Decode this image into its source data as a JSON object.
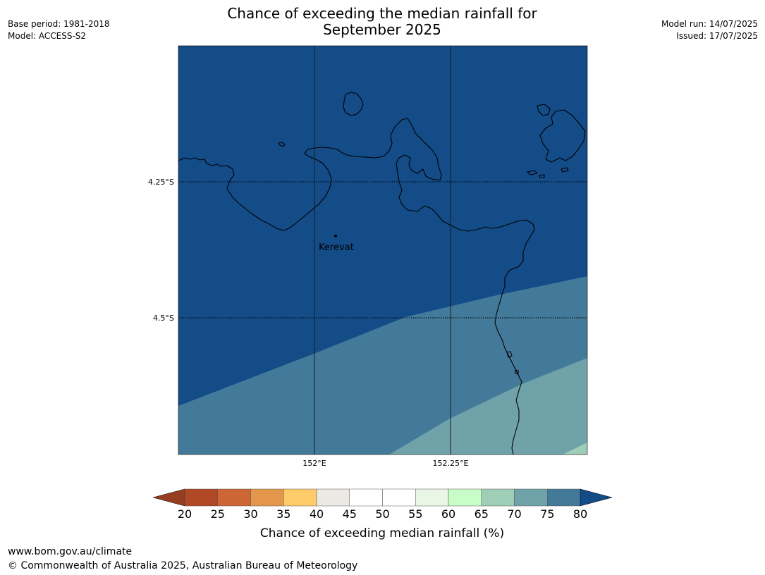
{
  "title": {
    "line1": "Chance of exceeding the median rainfall for",
    "line2": "September 2025"
  },
  "meta": {
    "base_period": "Base period: 1981-2018",
    "model": "Model: ACCESS-S2",
    "model_run": "Model run: 14/07/2025",
    "issued": "Issued: 17/07/2025"
  },
  "map": {
    "latitude_labels": [
      "4.25°S",
      "4.5°S"
    ],
    "longitude_labels": [
      "152°E",
      "152.25°E"
    ],
    "place": "Kerevat",
    "zone_colors": {
      "75-80": "#447a99",
      "70-75": "#6fa3a9",
      "65-70": "#9ecfb6",
      "above-80": "#144c88"
    }
  },
  "colorbar": {
    "label": "Chance of exceeding median rainfall (%)",
    "ticks": [
      "20",
      "25",
      "30",
      "35",
      "40",
      "45",
      "50",
      "55",
      "60",
      "65",
      "70",
      "75",
      "80"
    ],
    "colors": [
      "#b04725",
      "#cd6535",
      "#e4964a",
      "#fecb6a",
      "#ece8e4",
      "#ffffff",
      "#ffffff",
      "#e9f5e5",
      "#c8fdc8",
      "#9ecfb6",
      "#6fa3a9",
      "#447a99"
    ],
    "under_color": "#963f20",
    "over_color": "#144c88"
  },
  "footer": {
    "url": "www.bom.gov.au/climate",
    "copyright": "© Commonwealth of Australia 2025, Australian Bureau of Meteorology"
  }
}
